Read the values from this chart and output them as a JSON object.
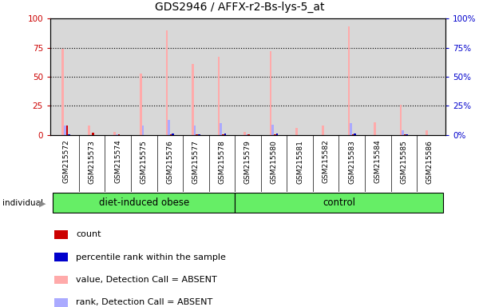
{
  "title": "GDS2946 / AFFX-r2-Bs-lys-5_at",
  "samples": [
    "GSM215572",
    "GSM215573",
    "GSM215574",
    "GSM215575",
    "GSM215576",
    "GSM215577",
    "GSM215578",
    "GSM215579",
    "GSM215580",
    "GSM215581",
    "GSM215582",
    "GSM215583",
    "GSM215584",
    "GSM215585",
    "GSM215586"
  ],
  "group1_label": "diet-induced obese",
  "group2_label": "control",
  "group1_indices": [
    0,
    6
  ],
  "group2_indices": [
    7,
    14
  ],
  "red_bars": [
    8,
    2,
    0.5,
    0,
    1,
    0.5,
    0.5,
    0.5,
    1,
    0,
    0,
    1,
    0,
    1,
    0
  ],
  "blue_bars": [
    1,
    0,
    0,
    0,
    1.5,
    1,
    1.2,
    0,
    1.2,
    0,
    0,
    1.2,
    0,
    0.5,
    0
  ],
  "pink_bars": [
    74,
    8,
    2.5,
    53,
    90,
    61,
    67,
    2.5,
    72,
    6,
    8,
    93,
    11,
    26,
    4
  ],
  "lightblue_bars": [
    8,
    0,
    0.5,
    8,
    13,
    8,
    10,
    0.5,
    9,
    0,
    0,
    10,
    0,
    4,
    0
  ],
  "ylim": [
    0,
    100
  ],
  "yticks": [
    0,
    25,
    50,
    75,
    100
  ],
  "plot_bg": "#d8d8d8",
  "group_color": "#66ee66",
  "bar_width": 0.08,
  "left_tick_color": "#cc0000",
  "right_tick_color": "#0000cc",
  "legend_items": [
    {
      "label": "count",
      "color": "#cc0000"
    },
    {
      "label": "percentile rank within the sample",
      "color": "#0000cc"
    },
    {
      "label": "value, Detection Call = ABSENT",
      "color": "#ffaaaa"
    },
    {
      "label": "rank, Detection Call = ABSENT",
      "color": "#aaaaff"
    }
  ]
}
